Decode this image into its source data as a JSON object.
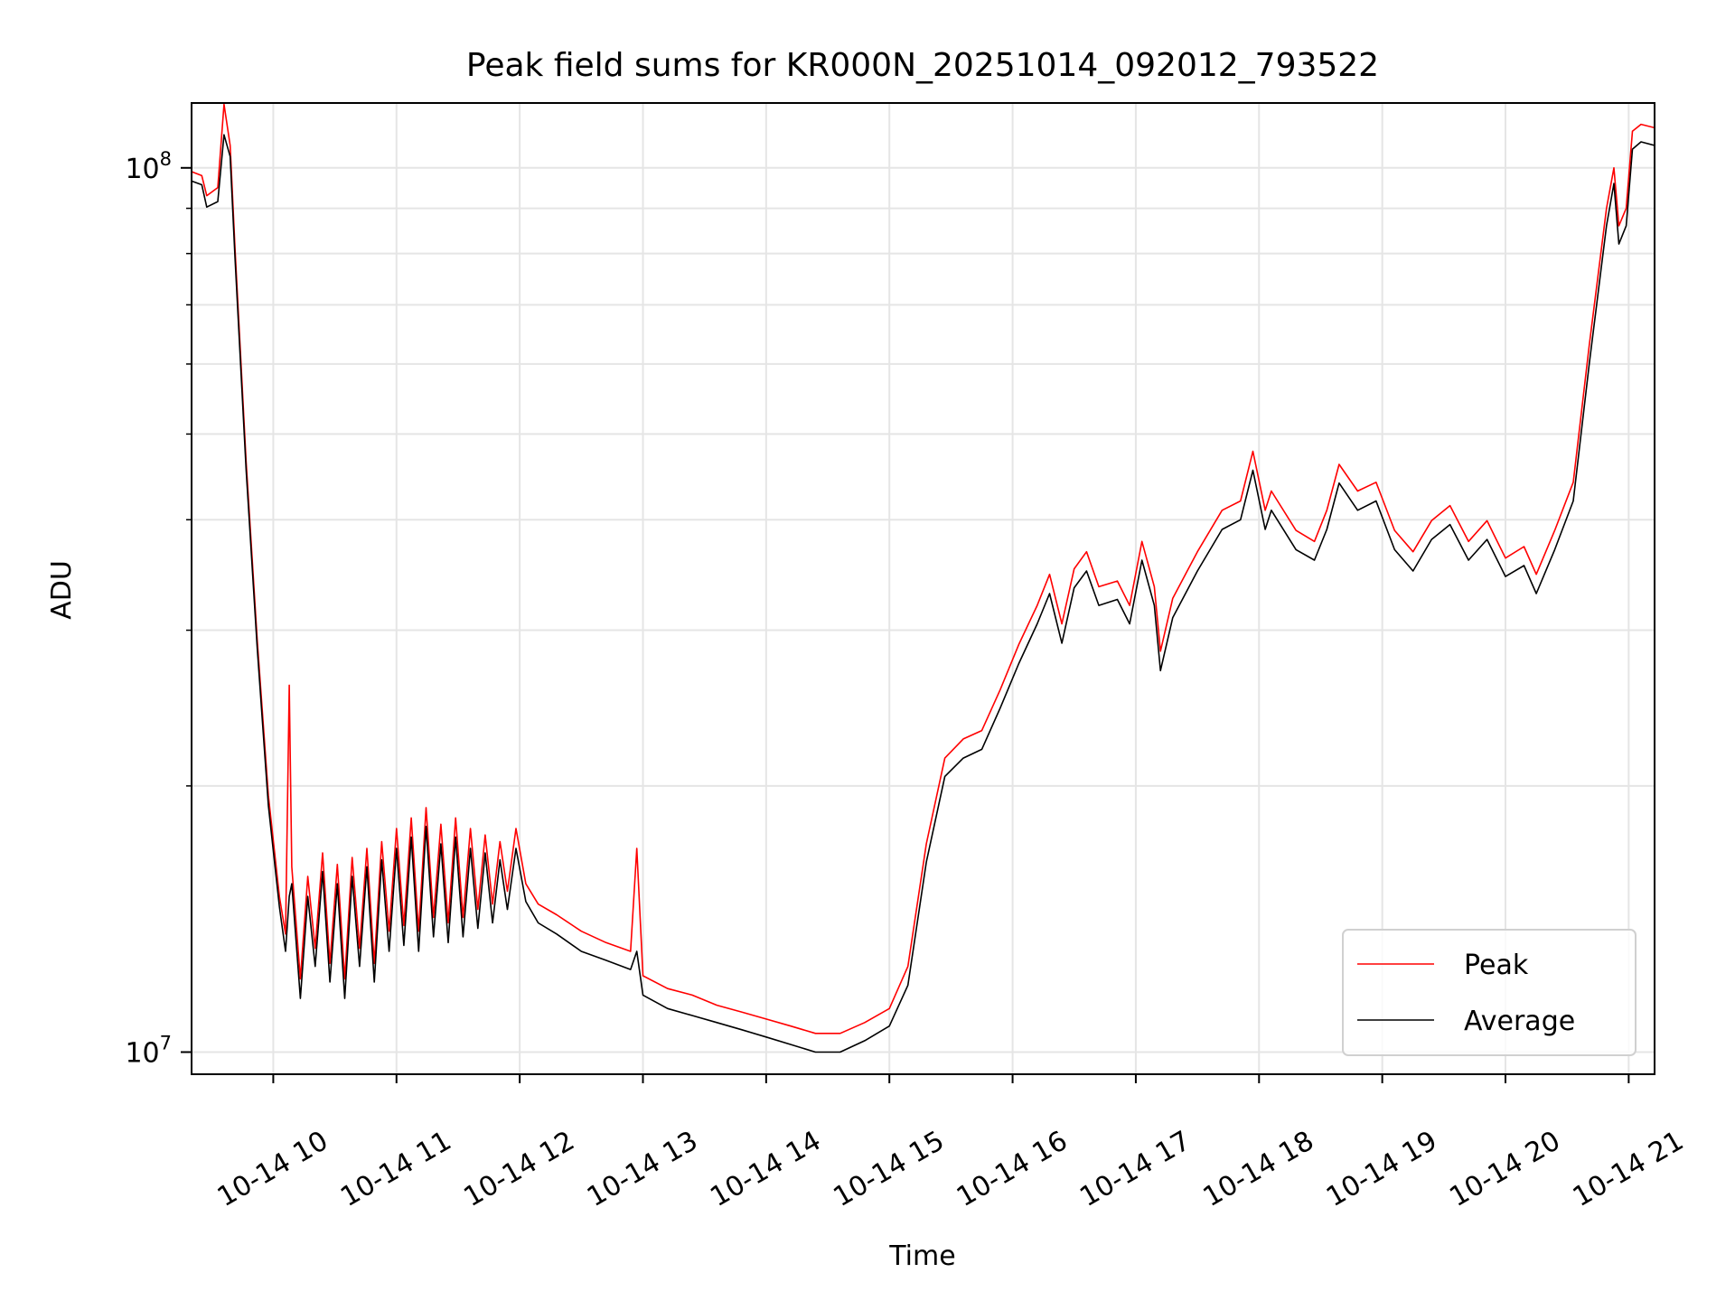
{
  "chart_data": {
    "type": "line",
    "title": "Peak field sums for KR000N_20251014_092012_793522",
    "xlabel": "Time",
    "ylabel": "ADU",
    "yscale": "log",
    "xlim_hours": [
      9.337,
      21.21
    ],
    "ylim": [
      9440000.0,
      118400000.0
    ],
    "grid": true,
    "legend_position": "lower-right",
    "x_ticks": [
      10,
      11,
      12,
      13,
      14,
      15,
      16,
      17,
      18,
      19,
      20,
      21
    ],
    "x_tick_labels": [
      "10-14 10",
      "10-14 11",
      "10-14 12",
      "10-14 13",
      "10-14 14",
      "10-14 15",
      "10-14 16",
      "10-14 17",
      "10-14 18",
      "10-14 19",
      "10-14 20",
      "10-14 21"
    ],
    "y_major_ticks": [
      10000000.0,
      100000000.0
    ],
    "y_tick_labels": [
      {
        "base": "10",
        "exp": "7"
      },
      {
        "base": "10",
        "exp": "8"
      }
    ],
    "y_minor_ticks": [
      20000000.0,
      30000000.0,
      40000000.0,
      50000000.0,
      60000000.0,
      70000000.0,
      80000000.0,
      90000000.0
    ],
    "x_hours": [
      9.34,
      9.42,
      9.46,
      9.55,
      9.6,
      9.65,
      9.69,
      9.78,
      9.87,
      9.96,
      10.05,
      10.1,
      10.13,
      10.15,
      10.22,
      10.28,
      10.34,
      10.4,
      10.46,
      10.52,
      10.58,
      10.64,
      10.7,
      10.76,
      10.82,
      10.88,
      10.94,
      11.0,
      11.06,
      11.12,
      11.18,
      11.24,
      11.3,
      11.36,
      11.42,
      11.48,
      11.54,
      11.6,
      11.66,
      11.72,
      11.78,
      11.84,
      11.9,
      11.97,
      12.05,
      12.15,
      12.3,
      12.5,
      12.7,
      12.9,
      12.95,
      13.0,
      13.2,
      13.4,
      13.6,
      13.8,
      14.0,
      14.2,
      14.4,
      14.6,
      14.8,
      15.0,
      15.15,
      15.3,
      15.45,
      15.6,
      15.75,
      15.9,
      16.05,
      16.2,
      16.3,
      16.4,
      16.5,
      16.6,
      16.7,
      16.85,
      16.95,
      17.05,
      17.15,
      17.2,
      17.3,
      17.5,
      17.7,
      17.85,
      17.95,
      18.05,
      18.1,
      18.3,
      18.45,
      18.55,
      18.65,
      18.8,
      18.95,
      19.1,
      19.25,
      19.4,
      19.55,
      19.7,
      19.85,
      20.0,
      20.15,
      20.25,
      20.4,
      20.55,
      20.68,
      20.82,
      20.88,
      20.92,
      20.98,
      21.03,
      21.1,
      21.21
    ],
    "series": [
      {
        "name": "Peak",
        "color": "#ff0000",
        "values": [
          99000000.0,
          98000000.0,
          93000000.0,
          95000000.0,
          118000000.0,
          106000000.0,
          81000000.0,
          46500000.0,
          29200000.0,
          19500000.0,
          15000000.0,
          13600000.0,
          26000000.0,
          16200000.0,
          12100000.0,
          15800000.0,
          13100000.0,
          16800000.0,
          12600000.0,
          16300000.0,
          12100000.0,
          16600000.0,
          13100000.0,
          17000000.0,
          12600000.0,
          17300000.0,
          13700000.0,
          17900000.0,
          13900000.0,
          18400000.0,
          13700000.0,
          18900000.0,
          14200000.0,
          18100000.0,
          14000000.0,
          18400000.0,
          14200000.0,
          17900000.0,
          14500000.0,
          17600000.0,
          14700000.0,
          17300000.0,
          15200000.0,
          17900000.0,
          15500000.0,
          14700000.0,
          14300000.0,
          13700000.0,
          13300000.0,
          13000000.0,
          17000000.0,
          12200000.0,
          11800000.0,
          11600000.0,
          11300000.0,
          11100000.0,
          10900000.0,
          10700000.0,
          10500000.0,
          10500000.0,
          10800000.0,
          11200000.0,
          12500000.0,
          17200000.0,
          21500000.0,
          22600000.0,
          23100000.0,
          25700000.0,
          28900000.0,
          32000000.0,
          34700000.0,
          30500000.0,
          35200000.0,
          36800000.0,
          33600000.0,
          34100000.0,
          32000000.0,
          37800000.0,
          33600000.0,
          28400000.0,
          32600000.0,
          36800000.0,
          41000000.0,
          42000000.0,
          47800000.0,
          41000000.0,
          43100000.0,
          38900000.0,
          37800000.0,
          41000000.0,
          46200000.0,
          43100000.0,
          44100000.0,
          38900000.0,
          36800000.0,
          39900000.0,
          41500000.0,
          37800000.0,
          39900000.0,
          36200000.0,
          37300000.0,
          34700000.0,
          38900000.0,
          44100000.0,
          63000000.0,
          90000000.0,
          100000000.0,
          86000000.0,
          90000000.0,
          110000000.0,
          112000000.0,
          111000000.0
        ]
      },
      {
        "name": "Average",
        "color": "#000000",
        "values": [
          96600000.0,
          95700000.0,
          90300000.0,
          91600000.0,
          109000000.0,
          103000000.0,
          79000000.0,
          45500000.0,
          28600000.0,
          19000000.0,
          14600000.0,
          13000000.0,
          15000000.0,
          15500000.0,
          11500000.0,
          15000000.0,
          12500000.0,
          16000000.0,
          12000000.0,
          15500000.0,
          11500000.0,
          15800000.0,
          12500000.0,
          16200000.0,
          12000000.0,
          16500000.0,
          13000000.0,
          17000000.0,
          13200000.0,
          17500000.0,
          13000000.0,
          18000000.0,
          13500000.0,
          17200000.0,
          13300000.0,
          17500000.0,
          13500000.0,
          17000000.0,
          13800000.0,
          16800000.0,
          14000000.0,
          16500000.0,
          14500000.0,
          17000000.0,
          14800000.0,
          14000000.0,
          13600000.0,
          13000000.0,
          12700000.0,
          12400000.0,
          13000000.0,
          11600000.0,
          11200000.0,
          11000000.0,
          10800000.0,
          10600000.0,
          10400000.0,
          10200000.0,
          10000000.0,
          10000000.0,
          10300000.0,
          10700000.0,
          11900000.0,
          16400000.0,
          20500000.0,
          21500000.0,
          22000000.0,
          24500000.0,
          27500000.0,
          30500000.0,
          33000000.0,
          29000000.0,
          33500000.0,
          35000000.0,
          32000000.0,
          32500000.0,
          30500000.0,
          36000000.0,
          32000000.0,
          27000000.0,
          31000000.0,
          35000000.0,
          39000000.0,
          40000000.0,
          45500000.0,
          39000000.0,
          41000000.0,
          37000000.0,
          36000000.0,
          39000000.0,
          44000000.0,
          41000000.0,
          42000000.0,
          37000000.0,
          35000000.0,
          38000000.0,
          39500000.0,
          36000000.0,
          38000000.0,
          34500000.0,
          35500000.0,
          33000000.0,
          37000000.0,
          42000000.0,
          60000000.0,
          86000000.0,
          96000000.0,
          82000000.0,
          86000000.0,
          105000000.0,
          107000000.0,
          106000000.0
        ]
      }
    ]
  }
}
